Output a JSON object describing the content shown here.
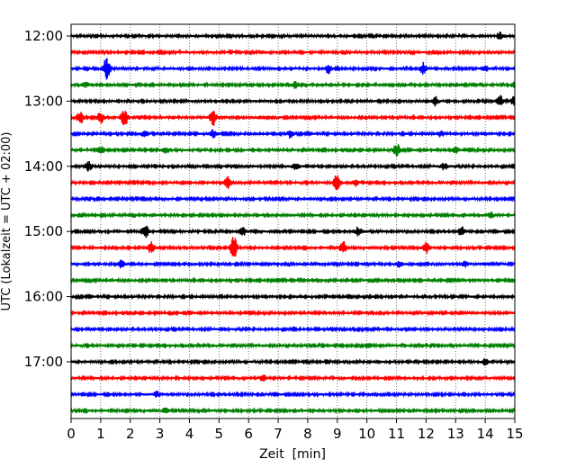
{
  "chart_data": {
    "type": "line",
    "title": "",
    "xlabel": "Zeit  [min]",
    "ylabel": "UTC (Lokalzeit = UTC + 02:00)",
    "xlim": [
      0,
      15
    ],
    "x_ticks": [
      "0",
      "1",
      "2",
      "3",
      "4",
      "5",
      "6",
      "7",
      "8",
      "9",
      "10",
      "11",
      "12",
      "13",
      "14",
      "15"
    ],
    "y_ticks": [
      "12:00",
      "13:00",
      "14:00",
      "15:00",
      "16:00",
      "17:00"
    ],
    "y_tick_rows": [
      0,
      4,
      8,
      12,
      16,
      20
    ],
    "row_start_utc": "12:00",
    "row_interval_min": 15,
    "grid": "vertical dotted",
    "trace_colors": [
      "#000000",
      "#ff0000",
      "#0000ff",
      "#008000"
    ],
    "series": [
      {
        "row": 0,
        "start": "12:00",
        "color": "#000000",
        "events": [
          [
            14.5,
            4
          ]
        ]
      },
      {
        "row": 1,
        "start": "12:15",
        "color": "#ff0000",
        "events": []
      },
      {
        "row": 2,
        "start": "12:30",
        "color": "#0000ff",
        "events": [
          [
            1.2,
            12
          ],
          [
            8.7,
            5
          ],
          [
            11.9,
            6
          ],
          [
            14.0,
            3
          ]
        ]
      },
      {
        "row": 3,
        "start": "12:45",
        "color": "#008000",
        "events": [
          [
            0.5,
            3
          ],
          [
            7.6,
            4
          ],
          [
            15.0,
            4
          ]
        ]
      },
      {
        "row": 4,
        "start": "13:00",
        "color": "#000000",
        "events": [
          [
            12.3,
            5
          ],
          [
            14.5,
            6
          ],
          [
            15.0,
            6
          ]
        ]
      },
      {
        "row": 5,
        "start": "13:15",
        "color": "#ff0000",
        "events": [
          [
            0.3,
            7
          ],
          [
            1.0,
            6
          ],
          [
            1.8,
            10
          ],
          [
            4.8,
            9
          ]
        ]
      },
      {
        "row": 6,
        "start": "13:30",
        "color": "#0000ff",
        "events": [
          [
            2.5,
            4
          ],
          [
            4.8,
            4
          ],
          [
            7.4,
            4
          ],
          [
            12.5,
            3
          ]
        ]
      },
      {
        "row": 7,
        "start": "13:45",
        "color": "#008000",
        "events": [
          [
            1.0,
            4
          ],
          [
            3.2,
            3
          ],
          [
            11.0,
            7
          ],
          [
            13.0,
            3
          ]
        ]
      },
      {
        "row": 8,
        "start": "14:00",
        "color": "#000000",
        "events": [
          [
            0.6,
            5
          ],
          [
            7.6,
            4
          ],
          [
            12.6,
            4
          ]
        ]
      },
      {
        "row": 9,
        "start": "14:15",
        "color": "#ff0000",
        "events": [
          [
            5.3,
            6
          ],
          [
            9.0,
            10
          ],
          [
            9.6,
            4
          ]
        ]
      },
      {
        "row": 10,
        "start": "14:30",
        "color": "#0000ff",
        "events": []
      },
      {
        "row": 11,
        "start": "14:45",
        "color": "#008000",
        "events": [
          [
            14.2,
            3
          ]
        ]
      },
      {
        "row": 12,
        "start": "15:00",
        "color": "#000000",
        "events": [
          [
            2.5,
            8
          ],
          [
            5.8,
            5
          ],
          [
            9.7,
            5
          ],
          [
            13.2,
            5
          ]
        ]
      },
      {
        "row": 13,
        "start": "15:15",
        "color": "#ff0000",
        "events": [
          [
            2.7,
            6
          ],
          [
            5.5,
            12
          ],
          [
            9.2,
            7
          ],
          [
            12.0,
            6
          ]
        ]
      },
      {
        "row": 14,
        "start": "15:30",
        "color": "#0000ff",
        "events": [
          [
            1.7,
            4
          ],
          [
            11.1,
            3
          ],
          [
            13.3,
            3
          ]
        ]
      },
      {
        "row": 15,
        "start": "15:45",
        "color": "#008000",
        "events": []
      },
      {
        "row": 16,
        "start": "16:00",
        "color": "#000000",
        "events": []
      },
      {
        "row": 17,
        "start": "16:15",
        "color": "#ff0000",
        "events": []
      },
      {
        "row": 18,
        "start": "16:30",
        "color": "#0000ff",
        "events": []
      },
      {
        "row": 19,
        "start": "16:45",
        "color": "#008000",
        "events": []
      },
      {
        "row": 20,
        "start": "17:00",
        "color": "#000000",
        "events": [
          [
            14.0,
            3
          ]
        ]
      },
      {
        "row": 21,
        "start": "17:15",
        "color": "#ff0000",
        "events": [
          [
            6.5,
            3
          ]
        ]
      },
      {
        "row": 22,
        "start": "17:30",
        "color": "#0000ff",
        "events": [
          [
            2.9,
            3
          ]
        ]
      },
      {
        "row": 23,
        "start": "17:45",
        "color": "#008000",
        "events": [
          [
            3.2,
            3
          ]
        ]
      }
    ]
  }
}
